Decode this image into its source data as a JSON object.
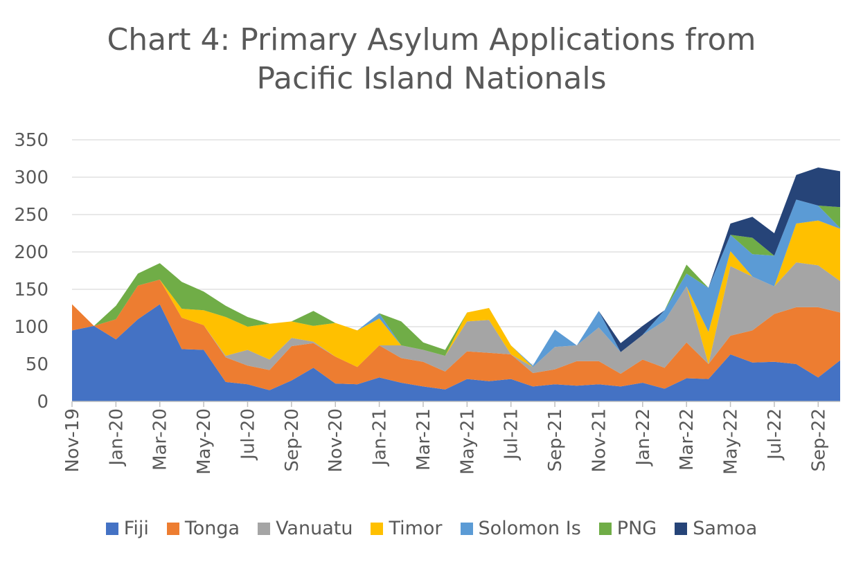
{
  "chart_data": {
    "type": "area",
    "stacked": true,
    "title_lines": [
      "Chart 4: Primary Asylum Applications from",
      "Pacific Island Nationals"
    ],
    "xlabel": "",
    "ylabel": "",
    "ylim": [
      0,
      350
    ],
    "yticks": [
      0,
      50,
      100,
      150,
      200,
      250,
      300,
      350
    ],
    "grid": true,
    "legend_position": "bottom",
    "x": [
      "Nov-19",
      "Dec-19",
      "Jan-20",
      "Feb-20",
      "Mar-20",
      "Apr-20",
      "May-20",
      "Jun-20",
      "Jul-20",
      "Aug-20",
      "Sep-20",
      "Oct-20",
      "Nov-20",
      "Dec-20",
      "Jan-21",
      "Feb-21",
      "Mar-21",
      "Apr-21",
      "May-21",
      "Jun-21",
      "Jul-21",
      "Aug-21",
      "Sep-21",
      "Oct-21",
      "Nov-21",
      "Dec-21",
      "Jan-22",
      "Feb-22",
      "Mar-22",
      "Apr-22",
      "May-22",
      "Jun-22",
      "Jul-22",
      "Aug-22",
      "Sep-22",
      "Oct-22"
    ],
    "x_tick_labels": [
      "Nov-19",
      "",
      "Jan-20",
      "",
      "Mar-20",
      "",
      "May-20",
      "",
      "Jul-20",
      "",
      "Sep-20",
      "",
      "Nov-20",
      "",
      "Jan-21",
      "",
      "Mar-21",
      "",
      "May-21",
      "",
      "Jul-21",
      "",
      "Sep-21",
      "",
      "Nov-21",
      "",
      "Jan-22",
      "",
      "Mar-22",
      "",
      "May-22",
      "",
      "Jul-22",
      "",
      "Sep-22",
      ""
    ],
    "series": [
      {
        "name": "Fiji",
        "color": "#4472C4",
        "values": [
          95,
          101,
          83,
          110,
          130,
          70,
          69,
          26,
          23,
          15,
          28,
          45,
          24,
          23,
          32,
          25,
          20,
          16,
          30,
          27,
          30,
          20,
          23,
          21,
          23,
          20,
          25,
          17,
          31,
          30,
          63,
          52,
          53,
          50,
          32,
          55
        ]
      },
      {
        "name": "Tonga",
        "color": "#ED7D31",
        "values": [
          35,
          0,
          27,
          45,
          33,
          42,
          33,
          33,
          25,
          27,
          46,
          33,
          36,
          23,
          43,
          33,
          33,
          24,
          37,
          38,
          33,
          18,
          20,
          33,
          31,
          17,
          31,
          28,
          48,
          20,
          25,
          43,
          64,
          76,
          94,
          64
        ]
      },
      {
        "name": "Vanuatu",
        "color": "#A5A5A5",
        "values": [
          0,
          0,
          0,
          0,
          0,
          0,
          0,
          2,
          21,
          14,
          11,
          2,
          0,
          0,
          0,
          17,
          16,
          21,
          40,
          44,
          0,
          8,
          30,
          21,
          45,
          29,
          33,
          63,
          75,
          0,
          93,
          72,
          37,
          60,
          56,
          42
        ]
      },
      {
        "name": "Timor",
        "color": "#FFC000",
        "values": [
          0,
          0,
          0,
          0,
          0,
          12,
          20,
          52,
          31,
          48,
          22,
          21,
          45,
          49,
          36,
          0,
          0,
          0,
          12,
          16,
          12,
          0,
          0,
          0,
          0,
          0,
          0,
          0,
          0,
          43,
          20,
          0,
          0,
          52,
          60,
          70
        ]
      },
      {
        "name": "Solomon Is",
        "color": "#5B9BD5",
        "values": [
          0,
          0,
          0,
          0,
          0,
          0,
          0,
          0,
          0,
          0,
          0,
          0,
          0,
          0,
          7,
          0,
          0,
          0,
          0,
          0,
          0,
          2,
          23,
          0,
          22,
          0,
          0,
          14,
          17,
          59,
          22,
          30,
          41,
          32,
          20,
          1
        ]
      },
      {
        "name": "PNG",
        "color": "#70AD47",
        "values": [
          0,
          0,
          18,
          16,
          22,
          36,
          25,
          15,
          13,
          0,
          0,
          20,
          0,
          0,
          0,
          32,
          10,
          8,
          0,
          0,
          0,
          0,
          0,
          0,
          0,
          0,
          0,
          0,
          12,
          0,
          0,
          22,
          0,
          0,
          0,
          28
        ]
      },
      {
        "name": "Samoa",
        "color": "#264478",
        "values": [
          0,
          0,
          0,
          0,
          0,
          0,
          0,
          0,
          0,
          0,
          0,
          0,
          0,
          0,
          0,
          0,
          0,
          0,
          0,
          0,
          0,
          0,
          0,
          0,
          0,
          12,
          12,
          0,
          0,
          0,
          15,
          28,
          30,
          33,
          51,
          48
        ]
      }
    ]
  }
}
